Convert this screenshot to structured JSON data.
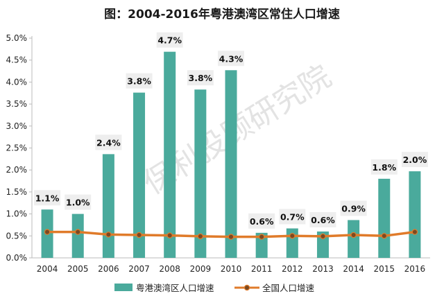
{
  "chart_data": {
    "type": "bar",
    "title": "图：2004-2016年粤港澳湾区常住人口增速",
    "categories": [
      "2004",
      "2005",
      "2006",
      "2007",
      "2008",
      "2009",
      "2010",
      "2011",
      "2012",
      "2013",
      "2014",
      "2015",
      "2016"
    ],
    "series": [
      {
        "name": "粤港澳湾区人口增速",
        "kind": "bar",
        "values": [
          1.1,
          1.0,
          2.36,
          3.76,
          4.69,
          3.83,
          4.27,
          0.57,
          0.67,
          0.6,
          0.86,
          1.8,
          1.97
        ],
        "labels": [
          "1.1%",
          "1.0%",
          "2.4%",
          "3.8%",
          "4.7%",
          "3.8%",
          "4.3%",
          "0.6%",
          "0.7%",
          "0.6%",
          "0.9%",
          "1.8%",
          "2.0%"
        ]
      },
      {
        "name": "全国人口增速",
        "kind": "line",
        "values": [
          0.59,
          0.59,
          0.53,
          0.52,
          0.51,
          0.49,
          0.48,
          0.48,
          0.5,
          0.49,
          0.52,
          0.5,
          0.59
        ]
      }
    ],
    "y_ticks": [
      "0.0%",
      "0.5%",
      "1.0%",
      "1.5%",
      "2.0%",
      "2.5%",
      "3.0%",
      "3.5%",
      "4.0%",
      "4.5%",
      "5.0%"
    ],
    "ylim": [
      0,
      5.0
    ],
    "grid": false,
    "legend_position": "bottom",
    "watermark": "保利投顾研究院",
    "colors": {
      "bar": "#4aaa9c",
      "line": "#e07b2a",
      "marker": "#7a4a22",
      "label_box": "#eeeeee",
      "axis": "#bbbbbb"
    }
  }
}
